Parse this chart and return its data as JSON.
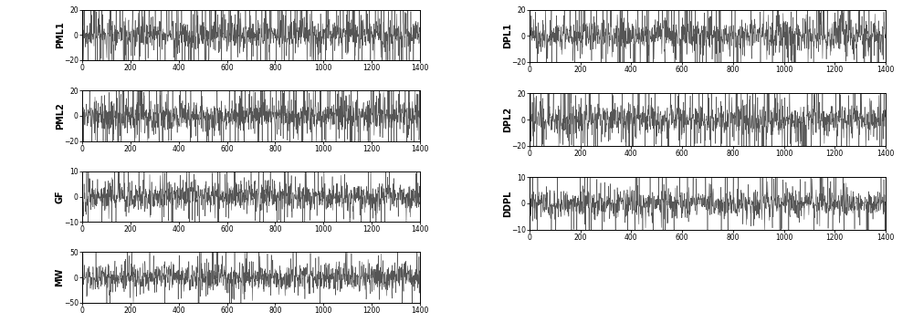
{
  "panels_left": [
    {
      "label": "PML1",
      "ylim": [
        -20,
        20
      ],
      "yticks": [
        -20,
        0,
        20
      ]
    },
    {
      "label": "PML2",
      "ylim": [
        -20,
        20
      ],
      "yticks": [
        -20,
        0,
        20
      ]
    },
    {
      "label": "GF",
      "ylim": [
        -10,
        10
      ],
      "yticks": [
        -10,
        0,
        10
      ]
    },
    {
      "label": "MW",
      "ylim": [
        -50,
        50
      ],
      "yticks": [
        -50,
        0,
        50
      ]
    }
  ],
  "panels_right": [
    {
      "label": "DPL1",
      "ylim": [
        -20,
        20
      ],
      "yticks": [
        -20,
        0,
        20
      ]
    },
    {
      "label": "DPL2",
      "ylim": [
        -20,
        20
      ],
      "yticks": [
        -20,
        0,
        20
      ]
    },
    {
      "label": "DDPL",
      "ylim": [
        -10,
        10
      ],
      "yticks": [
        -10,
        0,
        10
      ]
    }
  ],
  "xlim": [
    0,
    1400
  ],
  "xticks": [
    0,
    200,
    400,
    600,
    800,
    1000,
    1200,
    1400
  ],
  "n_points": 1400,
  "line_color": "#555555",
  "line_width": 0.4,
  "bg_color": "#ffffff",
  "label_fontsize": 7,
  "tick_fontsize": 5.5,
  "fig_width": 10.0,
  "fig_height": 3.53
}
